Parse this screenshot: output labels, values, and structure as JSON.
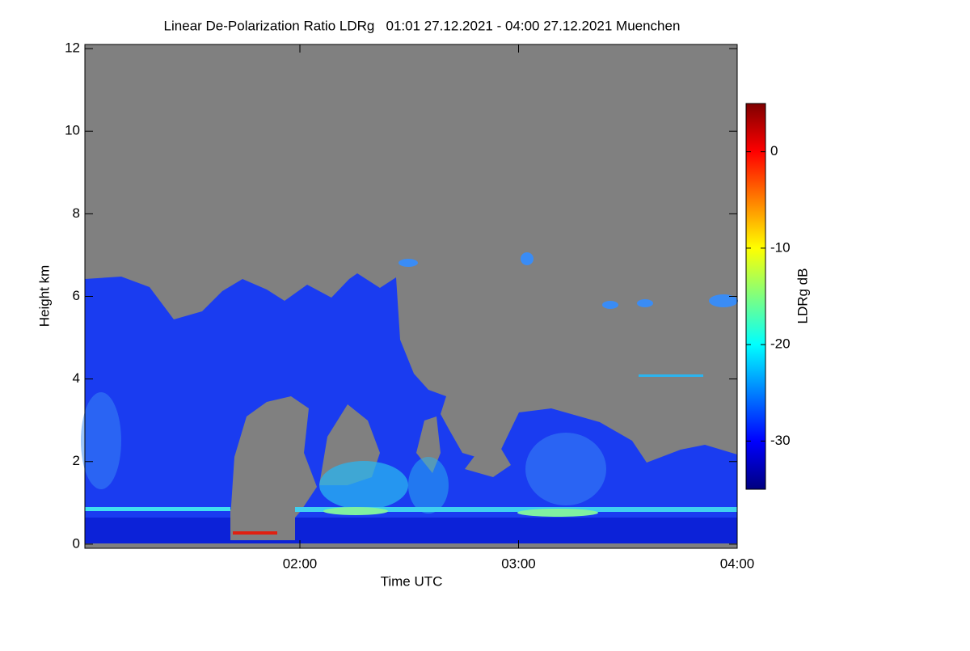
{
  "chart_data": {
    "type": "heatmap",
    "title": "Linear De-Polarization Ratio LDRg   01:01 27.12.2021 - 04:00 27.12.2021 Muenchen",
    "xlabel": "Time UTC",
    "ylabel": "Height km",
    "xlim": [
      1.0167,
      4.0
    ],
    "xticks": [
      {
        "value": 2,
        "label": "02:00"
      },
      {
        "value": 3,
        "label": "03:00"
      },
      {
        "value": 4,
        "label": "04:00"
      }
    ],
    "ylim": [
      -0.1,
      12.1
    ],
    "yticks": [
      0,
      2,
      4,
      6,
      8,
      10,
      12
    ],
    "background": "#808080",
    "colorbar": {
      "label": "LDRg dB",
      "clim": [
        -35,
        5
      ],
      "ticks": [
        0,
        -10,
        -20,
        -30
      ],
      "colormap": [
        "#00007f",
        "#0000ff",
        "#007fff",
        "#00ffff",
        "#7fff7f",
        "#ffff00",
        "#ff7f00",
        "#ff0000",
        "#7f0000"
      ]
    }
  }
}
